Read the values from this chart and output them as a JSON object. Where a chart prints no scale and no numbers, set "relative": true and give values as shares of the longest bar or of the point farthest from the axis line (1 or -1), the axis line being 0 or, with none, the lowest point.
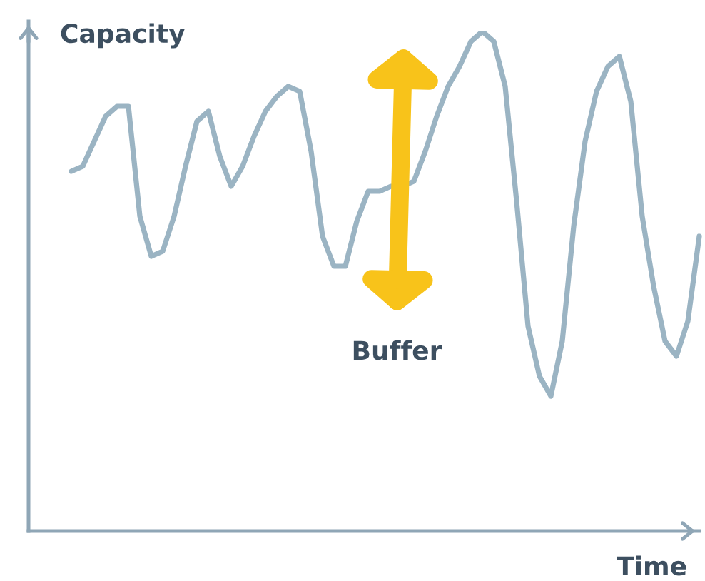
{
  "chart_data": {
    "type": "line",
    "relative": true,
    "tick_labels": false,
    "xlabel": "Time",
    "ylabel": "Capacity",
    "annotations": [
      "Buffer"
    ],
    "categories": [
      null,
      null,
      null,
      null,
      null,
      null,
      null,
      null,
      null,
      null,
      null,
      null,
      null,
      null,
      null,
      null,
      null,
      null,
      null,
      null,
      null,
      null,
      null,
      null,
      null,
      null,
      null,
      null,
      null,
      null,
      null,
      null,
      null,
      null,
      null,
      null,
      null,
      null,
      null,
      null,
      null,
      null,
      null,
      null,
      null,
      null,
      null,
      null,
      null,
      null,
      null,
      null,
      null,
      null,
      null,
      null
    ],
    "series": [
      {
        "color": "#9bb4c3",
        "values": [
          0.72,
          0.73,
          0.78,
          0.83,
          0.85,
          0.85,
          0.63,
          0.55,
          0.56,
          0.63,
          0.73,
          0.82,
          0.84,
          0.75,
          0.69,
          0.73,
          0.79,
          0.84,
          0.87,
          0.89,
          0.88,
          0.76,
          0.59,
          0.53,
          0.53,
          0.62,
          0.68,
          0.68,
          0.69,
          0.69,
          0.7,
          0.76,
          0.83,
          0.89,
          0.93,
          0.98,
          1,
          0.98,
          0.89,
          0.66,
          0.41,
          0.31,
          0.27,
          0.38,
          0.61,
          0.78,
          0.88,
          0.93,
          0.95,
          0.86,
          0.63,
          0.49,
          0.38,
          0.35,
          0.42,
          0.59
        ]
      }
    ]
  }
}
